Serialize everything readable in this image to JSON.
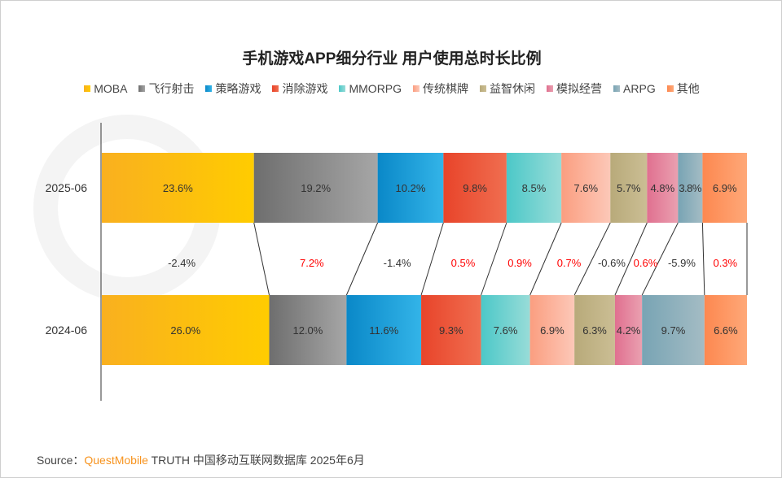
{
  "chart_data": {
    "type": "bar",
    "orientation": "horizontal-stacked-100",
    "title": "手机游戏APP细分行业 用户使用总时长比例",
    "legend_position": "top",
    "categories": [
      "2025-06",
      "2024-06"
    ],
    "series": [
      {
        "name": "MOBA",
        "values": [
          23.6,
          26.0
        ],
        "change": "-2.4%",
        "color": [
          "#f9b01f",
          "#ffcc00"
        ]
      },
      {
        "name": "飞行射击",
        "values": [
          19.2,
          12.0
        ],
        "change": "7.2%",
        "color": [
          "#6e6e6e",
          "#a6a6a6"
        ]
      },
      {
        "name": "策略游戏",
        "values": [
          10.2,
          11.6
        ],
        "change": "-1.4%",
        "color": [
          "#0a88c8",
          "#33b4e8"
        ]
      },
      {
        "name": "消除游戏",
        "values": [
          9.8,
          9.3
        ],
        "change": "0.5%",
        "color": [
          "#e8442a",
          "#f06e50"
        ]
      },
      {
        "name": "MMORPG",
        "values": [
          8.5,
          7.6
        ],
        "change": "0.9%",
        "color": [
          "#4cc8c8",
          "#98dcd8"
        ]
      },
      {
        "name": "传统棋牌",
        "values": [
          7.6,
          6.9
        ],
        "change": "0.7%",
        "color": [
          "#fb9e80",
          "#fcc8b8"
        ]
      },
      {
        "name": "益智休闲",
        "values": [
          5.7,
          6.3
        ],
        "change": "-0.6%",
        "color": [
          "#b8aa7a",
          "#cbbe94"
        ]
      },
      {
        "name": "模拟经营",
        "values": [
          4.8,
          4.2
        ],
        "change": "0.6%",
        "color": [
          "#e07090",
          "#eaa0b0"
        ]
      },
      {
        "name": "ARPG",
        "values": [
          3.8,
          9.7
        ],
        "change": "-5.9%",
        "color": [
          "#78a4b4",
          "#a4bcc4"
        ]
      },
      {
        "name": "其他",
        "values": [
          6.9,
          6.6
        ],
        "change": "0.3%",
        "color": [
          "#fd8850",
          "#fea878"
        ]
      }
    ],
    "positive_change_color": "#ff0000",
    "negative_change_color": "#333333"
  },
  "source": {
    "label": "Source：",
    "brand": "QuestMobile",
    "text": "TRUTH 中国移动互联网数据库 2025年6月"
  },
  "watermark": "QUESTMOBILE"
}
